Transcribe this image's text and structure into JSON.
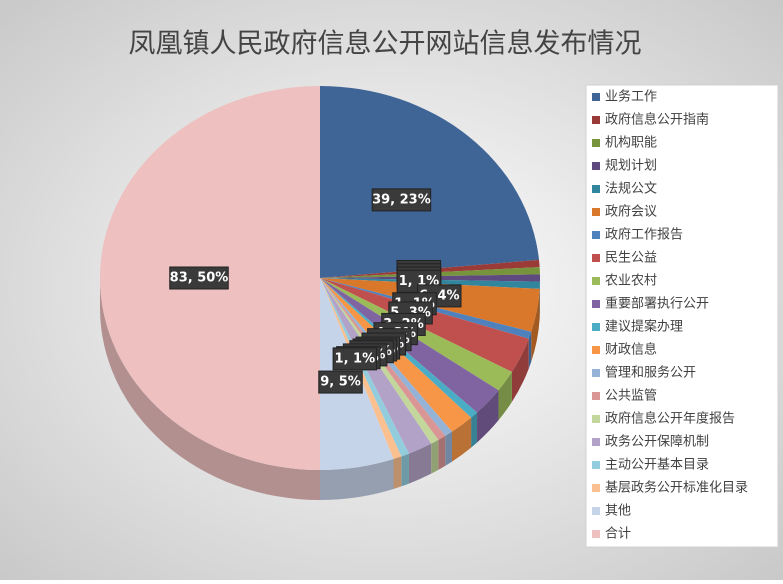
{
  "chart_data": {
    "type": "pie",
    "title": "凤凰镇人民政府信息公开网站信息发布情况",
    "categories": [
      "业务工作",
      "政府信息公开指南",
      "机构职能",
      "规划计划",
      "法规公文",
      "政府会议",
      "政府工作报告",
      "民生公益",
      "农业农村",
      "重要部署执行公开",
      "建议提案办理",
      "财政信息",
      "管理和服务公开",
      "公共监管",
      "政府信息公开年度报告",
      "政务公开保障机制",
      "主动公开基本目录",
      "基层政务公开标准化目录",
      "其他",
      "合计"
    ],
    "values": [
      39,
      1,
      1,
      1,
      1,
      6,
      1,
      5,
      3,
      4,
      1,
      3,
      1,
      1,
      1,
      3,
      1,
      1,
      9,
      83
    ],
    "value_labels": [
      "39, 23%",
      "1, 1%",
      "1, 1%",
      "1, 1%",
      "1, 1%",
      "6, 4%",
      "1, 1%",
      "5, 3%",
      "3, 2%",
      "4, 2%",
      "1, 1%",
      "3, 2%",
      "1, 1%",
      "1, 1%",
      "1, 1%",
      "3, 2%",
      "1, 1%",
      "1, 1%",
      "9, 5%",
      "83, 50%"
    ],
    "colors": [
      "#3f6496",
      "#9b3b38",
      "#77933c",
      "#5f4a7f",
      "#31859c",
      "#d9782b",
      "#4f81bd",
      "#c0504d",
      "#9bbb59",
      "#8064a2",
      "#4bacc6",
      "#f79646",
      "#95b3d7",
      "#d99694",
      "#c3d69b",
      "#b3a2c7",
      "#93cddd",
      "#fac090",
      "#c6d4ea",
      "#eec0c0"
    ],
    "legend": "right"
  }
}
